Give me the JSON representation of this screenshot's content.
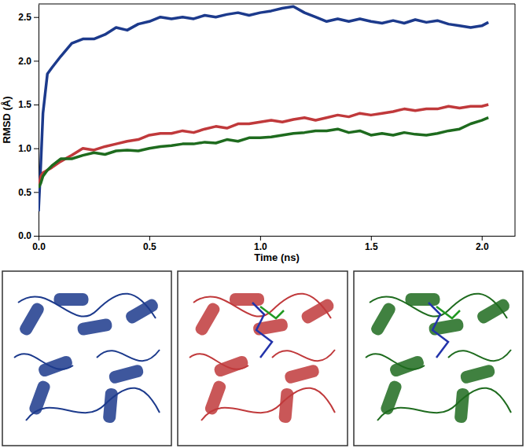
{
  "chart_data": {
    "type": "line",
    "x_label": "Time (ns)",
    "y_label": "RMSD (Å)",
    "x": [
      0,
      0.01,
      0.02,
      0.04,
      0.06,
      0.1,
      0.15,
      0.2,
      0.25,
      0.3,
      0.35,
      0.4,
      0.45,
      0.5,
      0.55,
      0.6,
      0.65,
      0.7,
      0.75,
      0.8,
      0.85,
      0.9,
      0.95,
      1.0,
      1.05,
      1.1,
      1.15,
      1.2,
      1.25,
      1.3,
      1.35,
      1.4,
      1.45,
      1.5,
      1.55,
      1.6,
      1.65,
      1.7,
      1.75,
      1.8,
      1.85,
      1.9,
      1.95,
      2.0,
      2.03
    ],
    "series": [
      {
        "color": "#1c3a8c",
        "values": [
          0.28,
          0.8,
          1.4,
          1.85,
          1.92,
          2.05,
          2.2,
          2.25,
          2.25,
          2.3,
          2.38,
          2.35,
          2.42,
          2.45,
          2.5,
          2.48,
          2.5,
          2.48,
          2.52,
          2.5,
          2.53,
          2.55,
          2.52,
          2.55,
          2.57,
          2.6,
          2.62,
          2.55,
          2.5,
          2.45,
          2.48,
          2.45,
          2.48,
          2.45,
          2.43,
          2.46,
          2.43,
          2.47,
          2.44,
          2.46,
          2.42,
          2.4,
          2.38,
          2.4,
          2.44
        ]
      },
      {
        "color": "#c0393b",
        "values": [
          0.55,
          0.68,
          0.72,
          0.75,
          0.78,
          0.85,
          0.92,
          1.0,
          0.98,
          1.02,
          1.05,
          1.08,
          1.1,
          1.15,
          1.17,
          1.17,
          1.2,
          1.18,
          1.22,
          1.25,
          1.23,
          1.28,
          1.28,
          1.3,
          1.32,
          1.3,
          1.33,
          1.35,
          1.32,
          1.35,
          1.38,
          1.36,
          1.4,
          1.38,
          1.4,
          1.42,
          1.45,
          1.43,
          1.45,
          1.45,
          1.48,
          1.46,
          1.48,
          1.48,
          1.5
        ]
      },
      {
        "color": "#1e6b1e",
        "values": [
          0.55,
          0.6,
          0.68,
          0.75,
          0.8,
          0.88,
          0.88,
          0.92,
          0.95,
          0.93,
          0.97,
          0.98,
          0.97,
          1.0,
          1.02,
          1.03,
          1.05,
          1.05,
          1.07,
          1.06,
          1.1,
          1.08,
          1.12,
          1.12,
          1.13,
          1.15,
          1.17,
          1.18,
          1.2,
          1.2,
          1.22,
          1.18,
          1.2,
          1.15,
          1.17,
          1.15,
          1.18,
          1.16,
          1.15,
          1.17,
          1.2,
          1.22,
          1.28,
          1.32,
          1.35
        ]
      }
    ],
    "xlim": [
      0,
      2.15
    ],
    "ylim": [
      0,
      2.65
    ],
    "xticks": [
      {
        "value": 0,
        "label": "0.0"
      },
      0.5,
      {
        "value": 1,
        "label": "1.0"
      },
      1.5,
      {
        "value": 2,
        "label": "2.0"
      }
    ],
    "yticks": [
      {
        "value": 0,
        "label": "0.0"
      },
      0.5,
      {
        "value": 1,
        "label": "1.0"
      },
      1.5,
      {
        "value": 2,
        "label": "2.0"
      },
      2.5
    ],
    "grid": false
  }
}
